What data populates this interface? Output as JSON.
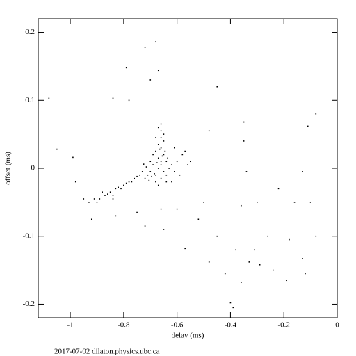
{
  "chart_data": {
    "type": "scatter",
    "xlabel": "delay (ms)",
    "ylabel": "offset (ms)",
    "footer": "2017-07-02 dilaton.physics.ubc.ca",
    "xlim": [
      -1.12,
      0
    ],
    "ylim": [
      -0.22,
      0.22
    ],
    "xticks": [
      -1,
      -0.8,
      -0.6,
      -0.4,
      -0.2,
      0
    ],
    "yticks": [
      -0.2,
      -0.1,
      0,
      0.1,
      0.2
    ],
    "color": "#000000",
    "x": [
      -0.67,
      -0.66,
      -0.68,
      -0.65,
      -0.69,
      -0.7,
      -0.71,
      -0.72,
      -0.66,
      -0.65,
      -0.67,
      -0.66,
      -0.68,
      -0.64,
      -0.63,
      -0.64,
      -0.66,
      -0.68,
      -0.7,
      -0.73,
      -0.74,
      -0.69,
      -0.67,
      -0.66,
      -0.65,
      -0.675,
      -0.655,
      -0.665,
      -0.685,
      -0.695,
      -0.705,
      -0.715,
      -0.725,
      -0.645,
      -0.635,
      -0.62,
      -0.61,
      -0.66,
      -0.67,
      -0.65,
      -0.68,
      -0.66,
      -0.64,
      -0.67,
      -0.76,
      -0.78,
      -0.8,
      -0.81,
      -0.83,
      -0.85,
      -0.87,
      -0.89,
      -0.91,
      -0.93,
      -0.95,
      -0.79,
      -0.82,
      -0.86,
      -0.88,
      -0.9,
      -0.84,
      -0.77,
      -0.75,
      -0.6,
      -0.58,
      -0.56,
      -0.59,
      -0.57,
      -0.55,
      -0.61,
      -0.62,
      -1.08,
      -0.79,
      -0.68,
      -0.72,
      -0.67,
      -0.7,
      -0.78,
      -0.84,
      -0.45,
      -0.08,
      -0.11,
      -0.35,
      -0.48,
      -0.99,
      -0.98,
      -1.05,
      -0.35,
      -0.34,
      -0.22,
      -0.16,
      -0.3,
      -0.36,
      -0.5,
      -0.52,
      -0.45,
      -0.38,
      -0.31,
      -0.33,
      -0.29,
      -0.24,
      -0.42,
      -0.48,
      -0.36,
      -0.4,
      -0.39,
      -0.13,
      -0.12,
      -0.19,
      -0.08,
      -0.18,
      -0.26,
      -0.57,
      -0.72,
      -0.65,
      -0.75,
      -0.84,
      -0.92,
      -0.6,
      -0.66,
      -0.83,
      -0.1,
      -0.13
    ],
    "values": [
      0.0,
      0.01,
      -0.01,
      0.02,
      0.005,
      -0.005,
      -0.01,
      -0.015,
      0.03,
      0.04,
      0.035,
      0.045,
      0.025,
      0.01,
      0.0,
      -0.01,
      -0.015,
      -0.02,
      0.01,
      -0.005,
      -0.01,
      0.02,
      0.015,
      0.005,
      -0.005,
      0.008,
      0.018,
      0.028,
      -0.008,
      -0.012,
      -0.018,
      0.002,
      0.006,
      0.025,
      0.015,
      0.005,
      -0.005,
      0.055,
      0.06,
      0.05,
      0.045,
      0.065,
      -0.02,
      -0.025,
      -0.015,
      -0.02,
      -0.025,
      -0.03,
      -0.03,
      -0.035,
      -0.04,
      -0.045,
      -0.045,
      -0.05,
      -0.045,
      -0.022,
      -0.028,
      -0.038,
      -0.035,
      -0.05,
      -0.04,
      -0.02,
      -0.012,
      0.01,
      0.02,
      0.005,
      -0.01,
      0.025,
      0.01,
      0.03,
      -0.02,
      0.103,
      0.148,
      0.186,
      0.178,
      0.144,
      0.13,
      0.1,
      0.103,
      0.12,
      0.08,
      0.062,
      0.068,
      0.055,
      0.016,
      -0.02,
      0.028,
      0.04,
      -0.005,
      -0.03,
      -0.05,
      -0.05,
      -0.055,
      -0.05,
      -0.075,
      -0.1,
      -0.12,
      -0.12,
      -0.138,
      -0.142,
      -0.15,
      -0.155,
      -0.138,
      -0.168,
      -0.198,
      -0.205,
      -0.133,
      -0.155,
      -0.165,
      -0.1,
      -0.105,
      -0.1,
      -0.118,
      -0.085,
      -0.09,
      -0.065,
      -0.045,
      -0.075,
      -0.06,
      -0.06,
      -0.07,
      -0.05,
      -0.005
    ]
  }
}
